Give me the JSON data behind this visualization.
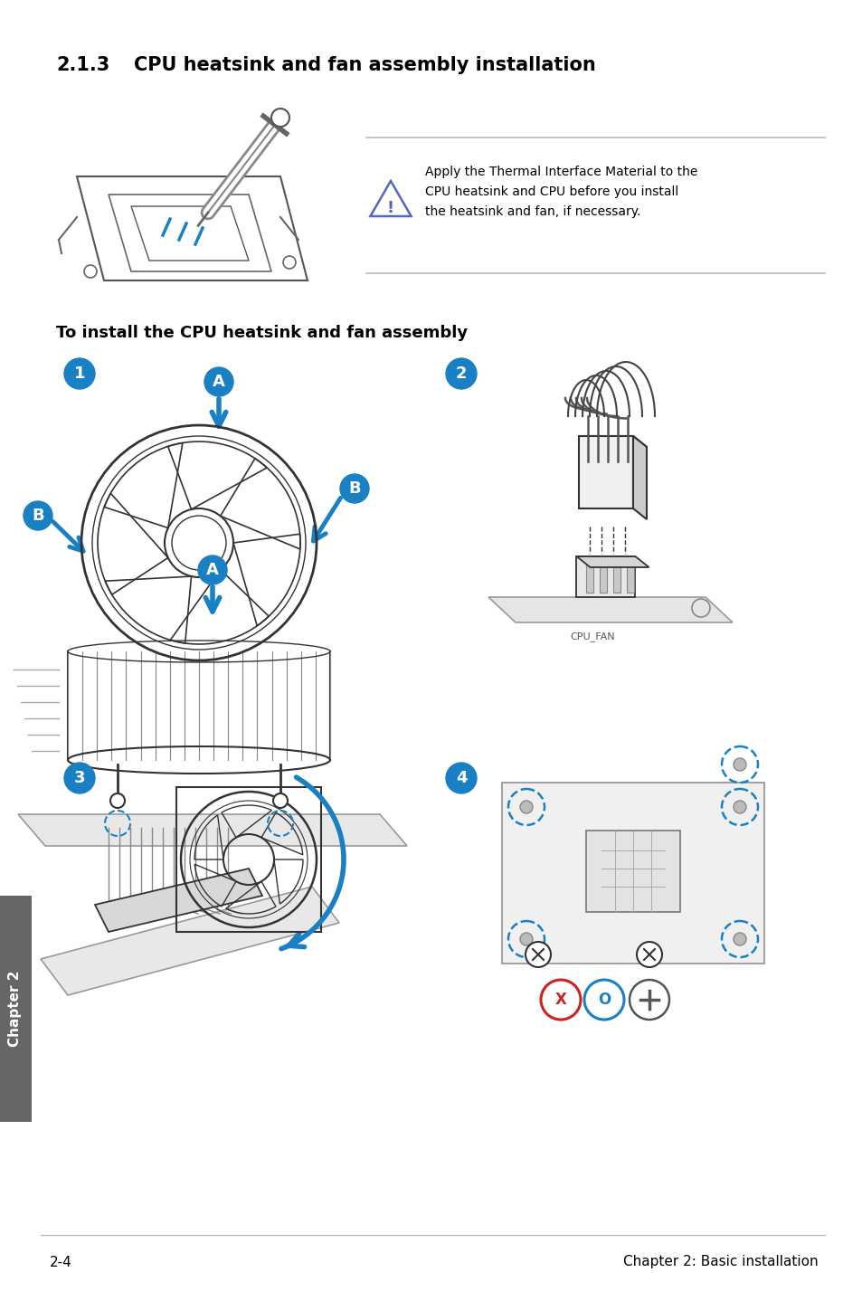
{
  "title_number": "2.1.3",
  "title_text": "CPU heatsink and fan assembly installation",
  "subtitle": "To install the CPU heatsink and fan assembly",
  "warning_line1": "Apply the Thermal Interface Material to the",
  "warning_line2": "CPU heatsink and CPU before you install",
  "warning_line3": "the heatsink and fan, if necessary.",
  "footer_left": "2-4",
  "footer_right": "Chapter 2: Basic installation",
  "bg_color": "#ffffff",
  "text_color": "#000000",
  "blue_color": "#1a80c4",
  "line_color": "#bbbbbb",
  "sidebar_color": "#666666",
  "sidebar_text": "Chapter 2",
  "draw_color": "#333333",
  "light_gray": "#e8e8e8",
  "med_gray": "#aaaaaa"
}
